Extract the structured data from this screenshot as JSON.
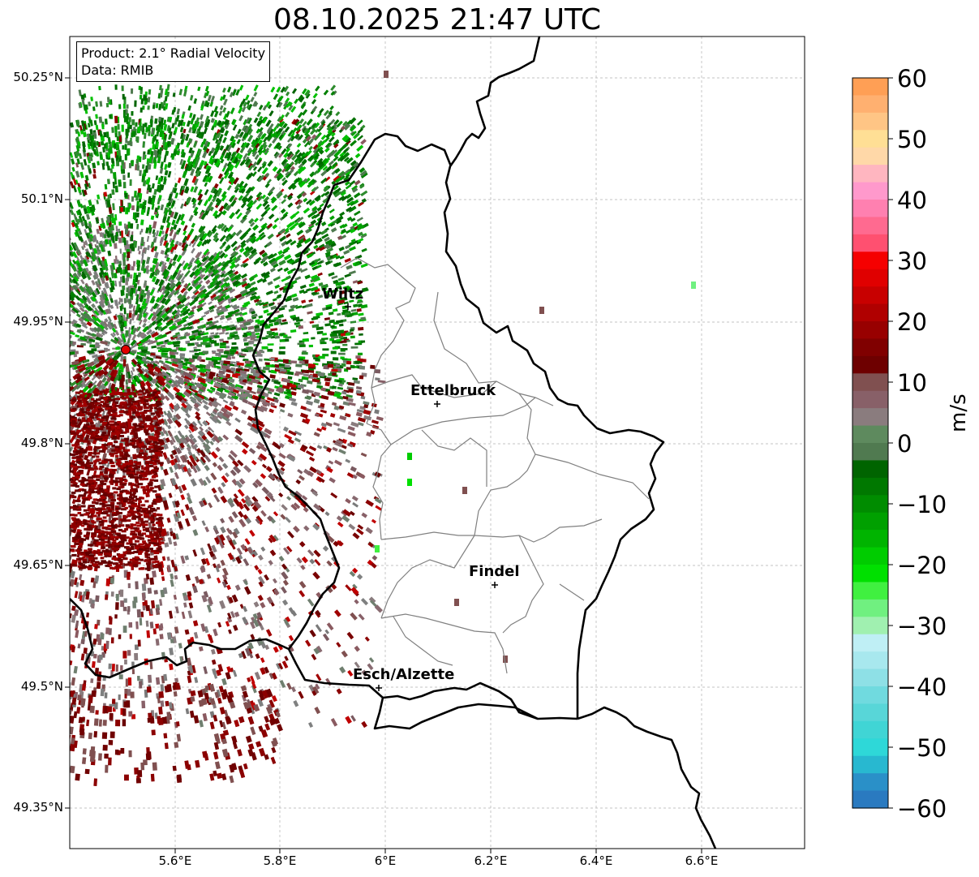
{
  "title": "08.10.2025 21:47 UTC",
  "info_box": {
    "product": "Product: 2.1° Radial Velocity",
    "data": "Data: RMIB"
  },
  "axes": {
    "lat_labels": [
      "50.25°N",
      "50.1°N",
      "49.95°N",
      "49.8°N",
      "49.65°N",
      "49.5°N",
      "49.35°N"
    ],
    "lon_labels": [
      "5.6°E",
      "5.8°E",
      "6°E",
      "6.2°E",
      "6.4°E",
      "6.6°E"
    ],
    "gridlines": true
  },
  "cities": [
    {
      "name": "Wiltz"
    },
    {
      "name": "Ettelbruck"
    },
    {
      "name": "Findel"
    },
    {
      "name": "Esch/Alzette"
    }
  ],
  "radar_site": {
    "marker_color": "#e00000"
  },
  "colorbar": {
    "unit": "m/s",
    "ticks": [
      "60",
      "50",
      "40",
      "30",
      "20",
      "10",
      "0",
      "−10",
      "−20",
      "−30",
      "−40",
      "−50",
      "−60"
    ],
    "range": [
      -60,
      60
    ],
    "colors_top_to_bottom": [
      "#ff9f55",
      "#ffb070",
      "#ffc585",
      "#ffdf95",
      "#ffd8a8",
      "#ffb6c0",
      "#ff99cc",
      "#ff80b0",
      "#ff6a90",
      "#ff5070",
      "#f50000",
      "#e00000",
      "#c80000",
      "#b00000",
      "#980000",
      "#800000",
      "#6e0000",
      "#805050",
      "#886068",
      "#8a7c7e",
      "#5e8a5e",
      "#507a50",
      "#006400",
      "#007800",
      "#008c00",
      "#00a000",
      "#00b400",
      "#00cc00",
      "#00e000",
      "#40f040",
      "#70f080",
      "#a0f0b0",
      "#bfeff5",
      "#a8e8ee",
      "#8ee0e6",
      "#70dadf",
      "#58d6d8",
      "#40d5d5",
      "#2ed8d8",
      "#28b8d0",
      "#2a90c8",
      "#2a7ac0"
    ]
  },
  "colors": {
    "border": "#000000",
    "canton_lines": "#808080",
    "grid": "#b0b0b0",
    "approaching_green": "#008000",
    "receding_red": "#8b0000",
    "near_zero": "#7a7a7a"
  }
}
